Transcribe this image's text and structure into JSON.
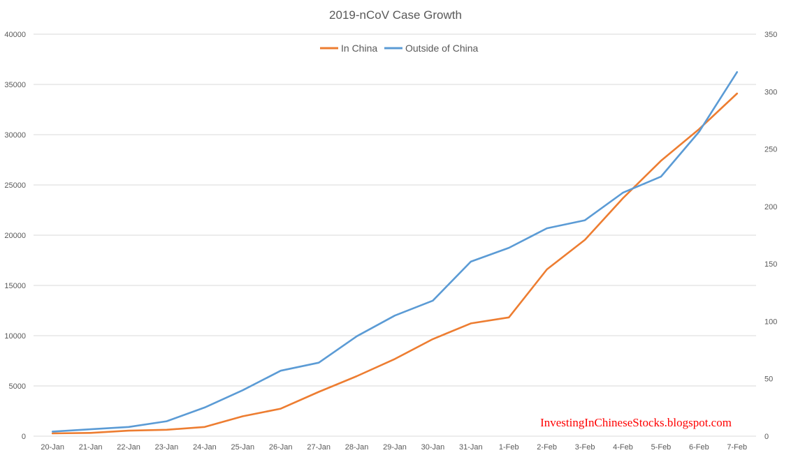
{
  "colors": {
    "in_china": "#ED7D31",
    "outside_china": "#5B9BD5",
    "grid": "#D9D9D9",
    "axis_text": "#595959",
    "title_text": "#595959",
    "watermark": "#FF0000"
  },
  "watermark": "InvestingInChineseStocks.blogspot.com",
  "chart_data": {
    "type": "line",
    "title": "2019-nCoV Case Growth",
    "xlabel": "",
    "ylabel": "",
    "legend_position": "top-center",
    "grid": true,
    "categories": [
      "20-Jan",
      "21-Jan",
      "22-Jan",
      "23-Jan",
      "24-Jan",
      "25-Jan",
      "26-Jan",
      "27-Jan",
      "28-Jan",
      "29-Jan",
      "30-Jan",
      "31-Jan",
      "1-Feb",
      "2-Feb",
      "3-Feb",
      "4-Feb",
      "5-Feb",
      "6-Feb",
      "7-Feb"
    ],
    "left_axis": {
      "min": 0,
      "max": 40000,
      "ticks": [
        "0",
        "5000",
        "10000",
        "15000",
        "20000",
        "25000",
        "30000",
        "35000",
        "40000"
      ]
    },
    "right_axis": {
      "min": 0,
      "max": 350,
      "ticks": [
        "0",
        "50",
        "100",
        "150",
        "200",
        "250",
        "300",
        "350"
      ]
    },
    "series": [
      {
        "name": "In China",
        "axis": "left",
        "color": "#ED7D31",
        "values": [
          278,
          326,
          547,
          639,
          916,
          1979,
          2737,
          4409,
          5970,
          7678,
          9658,
          11221,
          11821,
          16600,
          19544,
          23680,
          27400,
          30550,
          34100
        ]
      },
      {
        "name": "Outside of China",
        "axis": "right",
        "color": "#5B9BD5",
        "values": [
          4,
          6,
          8,
          13,
          25,
          40,
          57,
          64,
          87,
          105,
          118,
          152,
          164,
          181,
          188,
          212,
          226,
          265,
          317
        ]
      }
    ]
  }
}
